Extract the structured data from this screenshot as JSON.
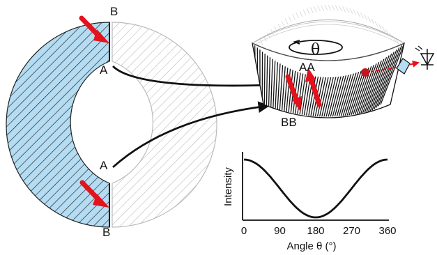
{
  "labels": {
    "left_top_b": "B",
    "left_upper_a": "A",
    "left_lower_a": "A",
    "left_bottom_b": "B",
    "ring_aa": "AA",
    "ring_bb": "BB",
    "theta": "θ"
  },
  "chart_data": {
    "type": "line",
    "xlabel": "Angle θ (°)",
    "ylabel": "Intensity",
    "x_ticks": [
      "0",
      "90",
      "180",
      "270",
      "360"
    ],
    "xlim": [
      0,
      360
    ],
    "series": [
      {
        "x": [
          0,
          45,
          90,
          135,
          180,
          225,
          270,
          315,
          360
        ],
        "y": [
          1.0,
          0.85,
          0.5,
          0.15,
          0.0,
          0.15,
          0.5,
          0.85,
          1.0
        ]
      }
    ],
    "grid": false
  },
  "colors": {
    "fill_blue": "#b4dcf2",
    "red": "#e3121c",
    "hatch_dark": "#111111",
    "hatch_light": "#bbbbbb"
  }
}
